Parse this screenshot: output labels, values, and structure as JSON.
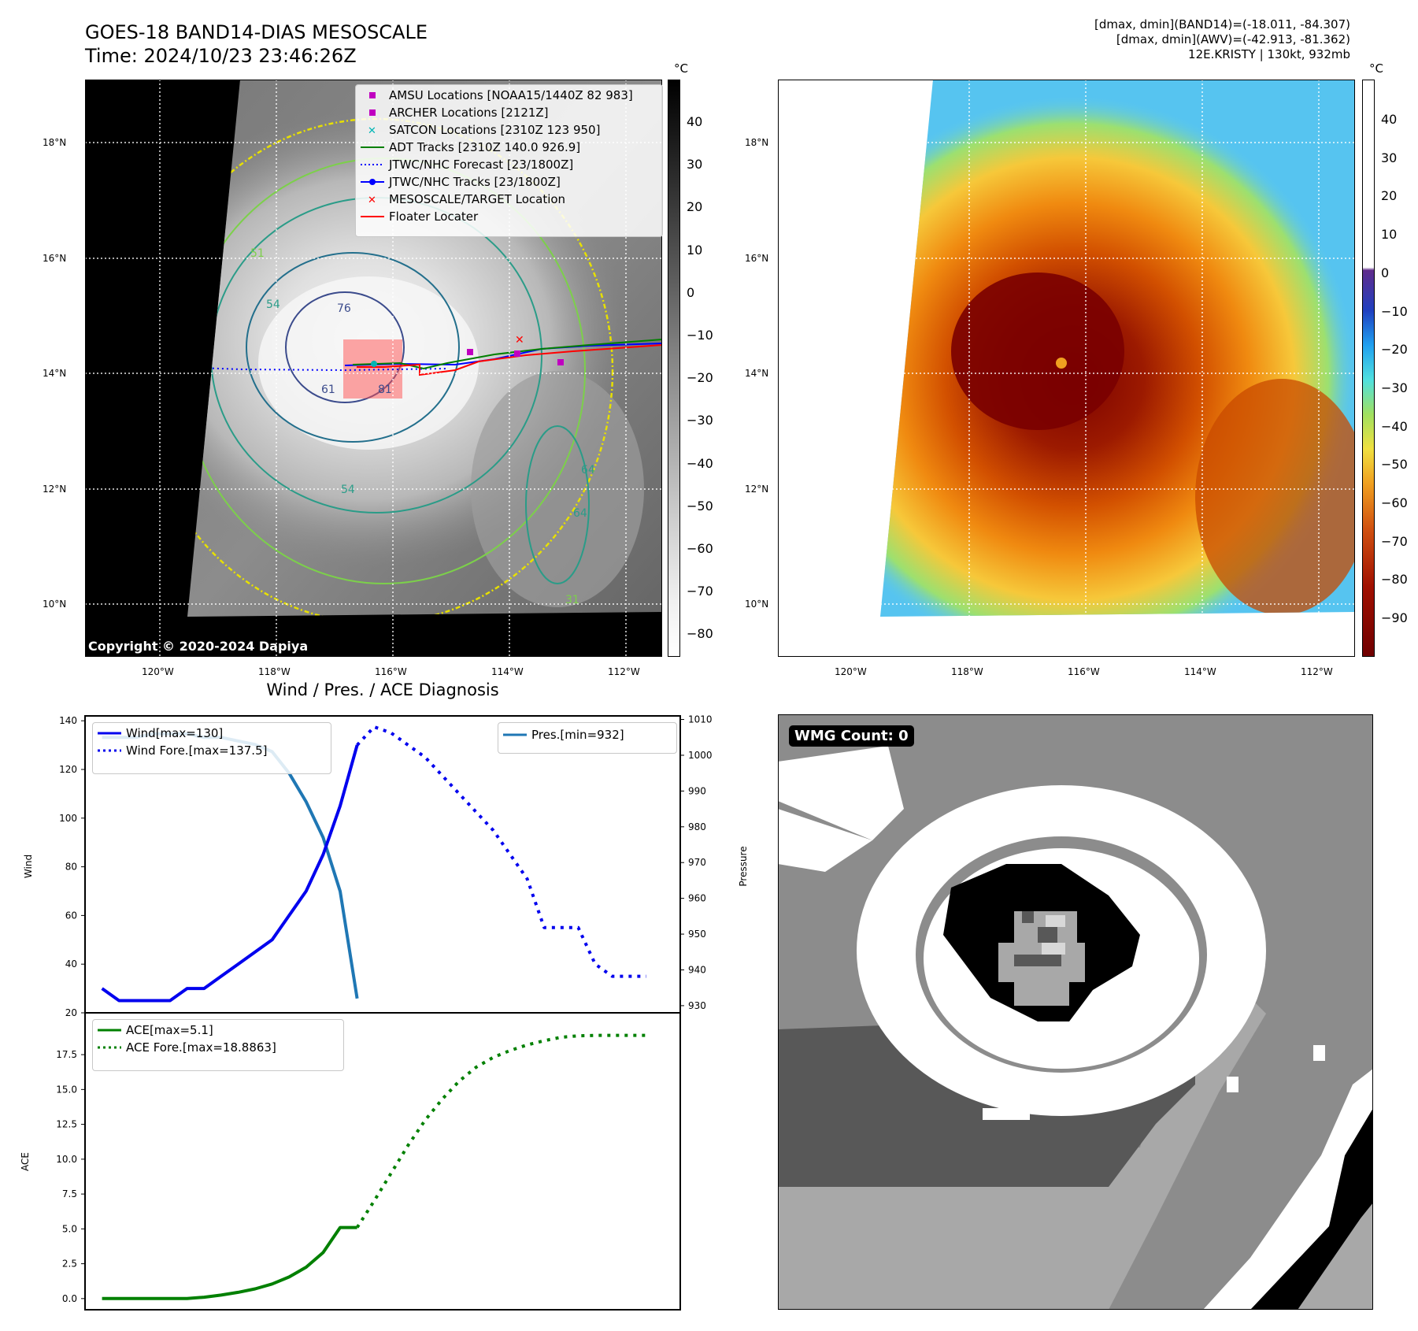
{
  "header": {
    "title_line1": "GOES-18 BAND14-DIAS MESOSCALE",
    "title_line2": "Time: 2024/10/23 23:46:26Z",
    "stats_line1": "[dmax, dmin](BAND14)=(-18.011, -84.307)",
    "stats_line2": "[dmax, dmin](AWV)=(-42.913, -81.362)",
    "stats_line3": "12E.KRISTY | 130kt, 932mb"
  },
  "map_axes": {
    "lat_labels": [
      "18°N",
      "16°N",
      "14°N",
      "12°N",
      "10°N"
    ],
    "lon_labels": [
      "120°W",
      "118°W",
      "116°W",
      "114°W",
      "112°W"
    ]
  },
  "colorbar_left": {
    "unit": "°C",
    "ticks": [
      "40",
      "30",
      "20",
      "10",
      "0",
      "−10",
      "−20",
      "−30",
      "−40",
      "−50",
      "−60",
      "−70",
      "−80"
    ]
  },
  "colorbar_right": {
    "unit": "°C",
    "ticks": [
      "40",
      "30",
      "20",
      "10",
      "0",
      "−10",
      "−20",
      "−30",
      "−40",
      "−50",
      "−60",
      "−70",
      "−80",
      "−90"
    ]
  },
  "map_legend": {
    "items": [
      {
        "label": "AMSU Locations [NOAA15/1440Z 82 983]",
        "color": "#c000c0",
        "symbol": "square"
      },
      {
        "label": "ARCHER Locations [2121Z]",
        "color": "#c000c0",
        "symbol": "square"
      },
      {
        "label": "SATCON Locations [2310Z 123 950]",
        "color": "#00b5b5",
        "symbol": "x"
      },
      {
        "label": "ADT Tracks [2310Z 140.0 926.9]",
        "color": "#008000",
        "symbol": "line"
      },
      {
        "label": "JTWC/NHC Forecast [23/1800Z]",
        "color": "#0000ff",
        "symbol": "dotted"
      },
      {
        "label": "JTWC/NHC Tracks [23/1800Z]",
        "color": "#0000ff",
        "symbol": "line-dot"
      },
      {
        "label": "MESOSCALE/TARGET Location",
        "color": "#ff0000",
        "symbol": "x"
      },
      {
        "label": "Floater Locater",
        "color": "#ff0000",
        "symbol": "line"
      }
    ]
  },
  "contour_labels": [
    "51",
    "54",
    "76",
    "81",
    "61",
    "54",
    "64",
    "64",
    "31"
  ],
  "copyright": "Copyright © 2020-2024 Dapiya",
  "wmg": {
    "label": "WMG Count: 0"
  },
  "chart_data": [
    {
      "type": "line",
      "title": "Wind / Pres. / ACE Diagnosis",
      "ylabel": "Wind",
      "ylabel_right": "Pressure",
      "ylim": [
        20,
        142
      ],
      "ylim_right": [
        928,
        1011
      ],
      "xlim": [
        0,
        35
      ],
      "yticks": [
        20,
        40,
        60,
        80,
        100,
        120,
        140
      ],
      "yticks_right": [
        930,
        940,
        950,
        960,
        970,
        980,
        990,
        1000,
        1010
      ],
      "legend_left": [
        "Wind[max=130]",
        "Wind Fore.[max=137.5]"
      ],
      "legend_right": [
        "Pres.[min=932]"
      ],
      "series": [
        {
          "name": "Wind[max=130]",
          "axis": "left",
          "style": "solid",
          "color": "#0000ee",
          "x": [
            1,
            2,
            3,
            4,
            5,
            6,
            7,
            8,
            9,
            10,
            11,
            12,
            13,
            14,
            15,
            16
          ],
          "y": [
            30,
            25,
            25,
            25,
            25,
            30,
            30,
            35,
            40,
            45,
            50,
            60,
            70,
            85,
            105,
            130
          ]
        },
        {
          "name": "Wind Fore.[max=137.5]",
          "axis": "left",
          "style": "dotted",
          "color": "#0000ee",
          "x": [
            16,
            17,
            18,
            19,
            20,
            21,
            22,
            23,
            24,
            25,
            26,
            27,
            28,
            29,
            30,
            31,
            32,
            33
          ],
          "y": [
            130,
            137.5,
            135,
            130,
            125,
            117.5,
            110,
            102.5,
            95,
            85,
            75,
            55,
            55,
            55,
            40,
            35,
            35,
            35
          ]
        },
        {
          "name": "Pres.[min=932]",
          "axis": "right",
          "style": "solid",
          "color": "#1f77b4",
          "x": [
            1,
            2,
            3,
            4,
            5,
            6,
            7,
            8,
            9,
            10,
            11,
            12,
            13,
            14,
            15,
            16
          ],
          "y": [
            1005,
            1005,
            1005,
            1006,
            1006,
            1006,
            1005,
            1005,
            1004,
            1003,
            1001,
            995,
            987,
            977,
            962,
            932
          ]
        }
      ]
    },
    {
      "type": "line",
      "ylabel": "ACE",
      "ylim": [
        -0.8,
        20.5
      ],
      "xlim": [
        0,
        35
      ],
      "yticks": [
        0.0,
        2.5,
        5.0,
        7.5,
        10.0,
        12.5,
        15.0,
        17.5
      ],
      "ytick_labels": [
        "0.0",
        "2.5",
        "5.0",
        "7.5",
        "10.0",
        "12.5",
        "15.0",
        "17.5"
      ],
      "legend": [
        "ACE[max=5.1]",
        "ACE Fore.[max=18.8863]"
      ],
      "series": [
        {
          "name": "ACE[max=5.1]",
          "style": "solid",
          "color": "#008000",
          "x": [
            1,
            2,
            3,
            4,
            5,
            6,
            7,
            8,
            9,
            10,
            11,
            12,
            13,
            14,
            15,
            16
          ],
          "y": [
            0,
            0,
            0,
            0,
            0,
            0,
            0.1,
            0.25,
            0.45,
            0.7,
            1.05,
            1.55,
            2.25,
            3.3,
            5.1,
            5.1
          ]
        },
        {
          "name": "ACE Fore.[max=18.8863]",
          "style": "dotted",
          "color": "#008000",
          "x": [
            16,
            17,
            18,
            19,
            20,
            21,
            22,
            23,
            24,
            25,
            26,
            27,
            28,
            29,
            30,
            31,
            32,
            33
          ],
          "y": [
            5.1,
            7.0,
            9.0,
            11.0,
            12.8,
            14.3,
            15.6,
            16.6,
            17.3,
            17.8,
            18.2,
            18.5,
            18.75,
            18.85,
            18.88,
            18.886,
            18.886,
            18.886
          ]
        }
      ]
    }
  ]
}
